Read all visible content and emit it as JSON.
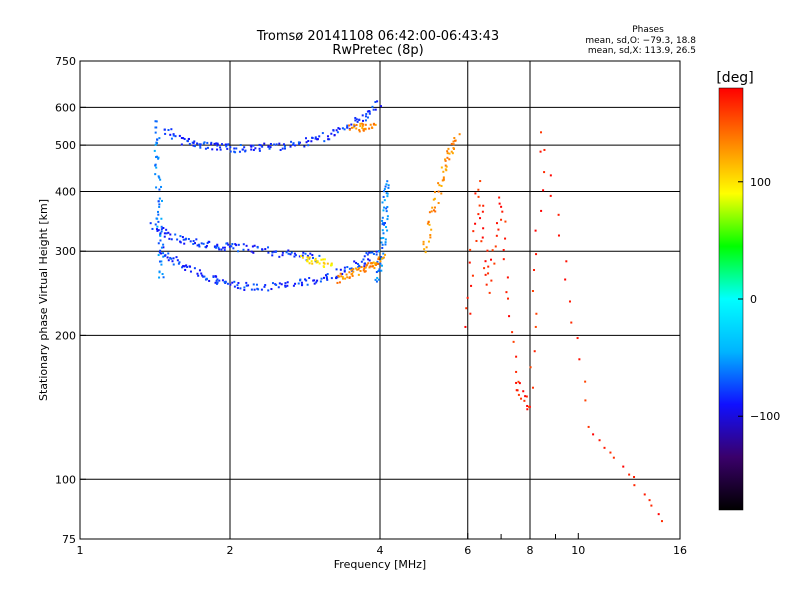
{
  "chart_data": {
    "type": "scatter",
    "title": "Tromsø 20141108 06:42:00-06:43:43",
    "subtitle": "RwPretec (8p)",
    "xlabel": "Frequency [MHz]",
    "ylabel": "Stationary phase Virtual Height [km]",
    "x_scale": "log",
    "y_scale": "log",
    "xlim": [
      1,
      16
    ],
    "ylim": [
      75,
      750
    ],
    "x_ticks": [
      1,
      2,
      4,
      6,
      8,
      10,
      16
    ],
    "x_tick_labels": [
      "1",
      "2",
      "4",
      "6",
      "8",
      "10",
      "16"
    ],
    "x_grid": [
      2,
      4,
      6,
      8
    ],
    "x_minor": [
      7,
      9
    ],
    "y_ticks": [
      75,
      100,
      200,
      300,
      400,
      500,
      600,
      750
    ],
    "y_tick_labels": [
      "75",
      "100",
      "200",
      "300",
      "400",
      "500",
      "600",
      "750"
    ],
    "y_grid": [
      100,
      200,
      300,
      400,
      500,
      600
    ],
    "grid": true,
    "phases_legend": {
      "heading": "Phases",
      "line_o": "mean, sd,O: −79.3, 18.8",
      "line_x": "mean, sd,X: 113.9, 26.5"
    },
    "colorbar": {
      "label": "[deg]",
      "range": [
        -180,
        180
      ],
      "ticks": [
        100,
        0,
        -100
      ],
      "tick_labels": [
        "100",
        "0",
        "−100"
      ],
      "colors": [
        "#000000",
        "#3a006a",
        "#1010ff",
        "#00b4ff",
        "#00ffff",
        "#00ff00",
        "#ffff00",
        "#ff8000",
        "#ff0000"
      ]
    },
    "series": [
      {
        "color_deg": -80,
        "traces": [
          {
            "x": [
              1.48,
              1.62,
              1.75,
              1.9,
              2.05,
              2.25,
              2.5,
              2.8,
              3.1,
              3.4,
              3.7,
              4.0
            ],
            "y": [
              540,
              510,
              500,
              495,
              492,
              493,
              497,
              505,
              520,
              540,
              570,
              610
            ]
          },
          {
            "x": [
              1.45,
              1.55,
              1.7,
              1.85,
              2.0,
              2.2,
              2.5,
              2.8,
              3.1,
              3.4,
              3.7,
              3.9
            ],
            "y": [
              300,
              285,
              272,
              262,
              255,
              252,
              253,
              258,
              264,
              272,
              285,
              300
            ]
          },
          {
            "x": [
              1.4,
              1.5,
              1.65,
              1.8,
              1.95,
              2.1,
              2.4,
              2.7,
              3.0
            ],
            "y": [
              340,
              325,
              315,
              310,
              306,
              305,
              300,
              295,
              290
            ]
          }
        ]
      },
      {
        "color_deg": -60,
        "traces": [
          {
            "x": [
              1.42,
              1.43,
              1.44,
              1.45,
              1.46
            ],
            "y": [
              560,
              470,
              380,
              320,
              260
            ]
          },
          {
            "x": [
              3.95,
              4.02,
              4.08,
              4.1,
              4.12
            ],
            "y": [
              260,
              290,
              330,
              370,
              420
            ]
          }
        ]
      },
      {
        "color_deg": 130,
        "traces": [
          {
            "x": [
              3.3,
              3.5,
              3.7,
              3.9,
              4.05
            ],
            "y": [
              262,
              268,
              275,
              280,
              290
            ]
          },
          {
            "x": [
              3.5,
              3.7,
              3.9
            ],
            "y": [
              540,
              545,
              550
            ]
          },
          {
            "x": [
              4.9,
              5.1,
              5.3,
              5.5,
              5.7
            ],
            "y": [
              300,
              360,
              420,
              480,
              520
            ]
          }
        ]
      },
      {
        "color_deg": 100,
        "traces": [
          {
            "x": [
              2.8,
              3.0,
              3.2
            ],
            "y": [
              290,
              285,
              282
            ]
          }
        ]
      },
      {
        "color_deg": 170,
        "traces": [
          {
            "x": [
              6.0,
              6.3,
              6.6,
              7.0,
              7.5,
              8.0,
              8.5,
              10.6,
              14.8
            ],
            "y": [
              210,
              420,
              250,
              390,
              160,
              140,
              530,
              130,
              83
            ]
          }
        ]
      }
    ]
  }
}
